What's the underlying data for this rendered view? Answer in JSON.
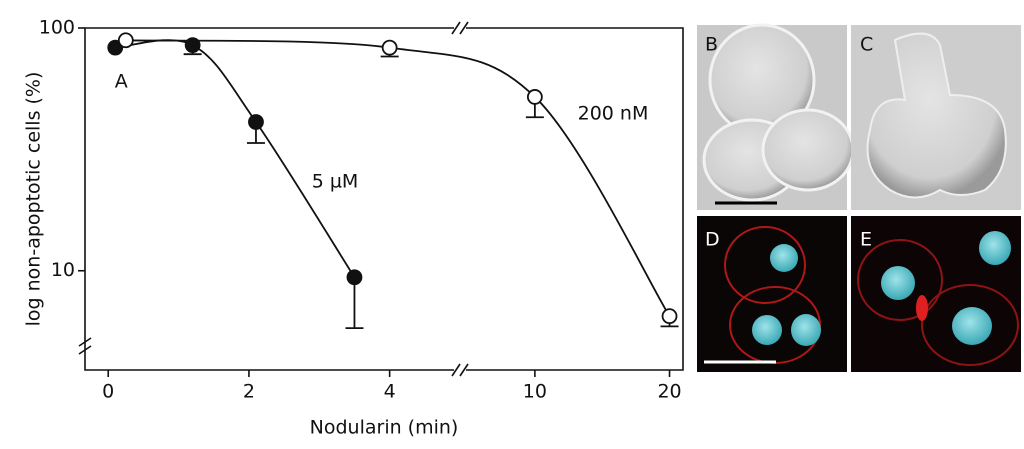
{
  "chart_data": {
    "type": "line",
    "y_label": "log non-apoptotic cells (%)",
    "x_label": "Nodularin (min)",
    "log_y": true,
    "ylim": [
      3.9,
      100
    ],
    "yticks": [
      10,
      100
    ],
    "xlim": [
      [
        -0.33,
        5
      ],
      [
        4.44,
        21
      ]
    ],
    "xticks": [
      0,
      2,
      4,
      10,
      20
    ],
    "series": [
      {
        "name": "5 µM",
        "marker": "filled",
        "color": "#111111",
        "x": [
          0.1,
          1.2,
          2.1,
          3.5
        ],
        "values": [
          83,
          85,
          41,
          9.4
        ],
        "errors": [
          null,
          7,
          7.4,
          3.6
        ]
      },
      {
        "name": "200 nM",
        "marker": "open",
        "color": "#111111",
        "x": [
          0.25,
          4,
          10,
          20
        ],
        "values": [
          89,
          83,
          52,
          6.5
        ],
        "errors": [
          null,
          6.7,
          9.1,
          0.6
        ]
      }
    ],
    "annotations": [
      {
        "text": "A",
        "x": 0.1,
        "y": 60
      }
    ]
  },
  "panels": [
    "B",
    "C",
    "D",
    "E"
  ]
}
